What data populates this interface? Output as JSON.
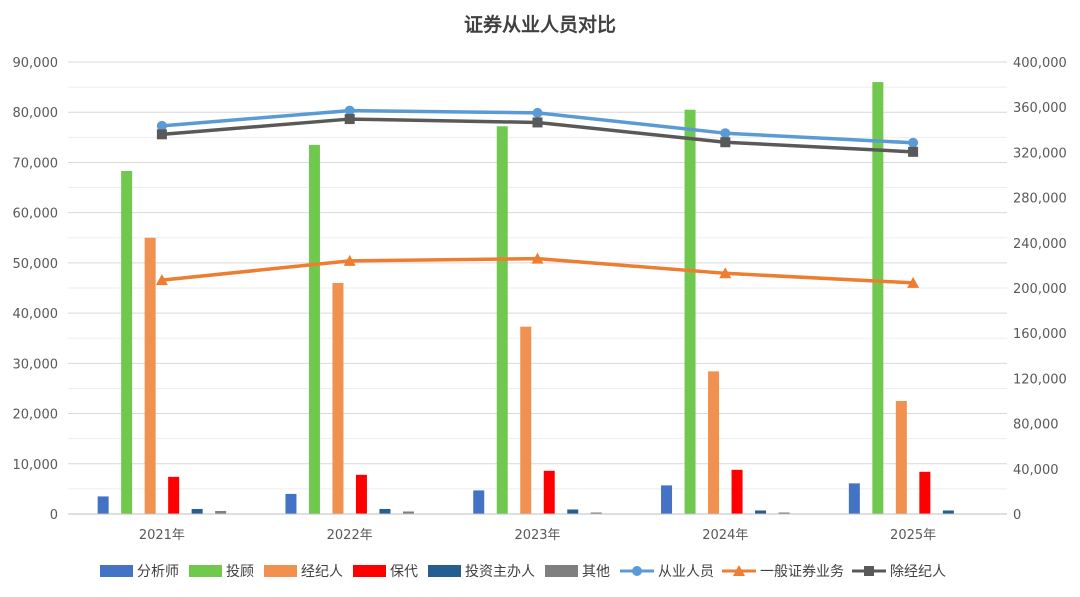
{
  "chart_data": {
    "type": "bar",
    "title": "证券从业人员对比",
    "categories": [
      "2021年",
      "2022年",
      "2023年",
      "2024年",
      "2025年"
    ],
    "y_left": {
      "min": 0,
      "max": 90000,
      "step": 10000,
      "tick_labels": [
        "0",
        "10,000",
        "20,000",
        "30,000",
        "40,000",
        "50,000",
        "60,000",
        "70,000",
        "80,000",
        "90,000"
      ]
    },
    "y_right": {
      "min": 0,
      "max": 400000,
      "step": 40000,
      "tick_labels": [
        "0",
        "40,000",
        "80,000",
        "120,000",
        "160,000",
        "200,000",
        "240,000",
        "280,000",
        "320,000",
        "360,000",
        "400,000"
      ]
    },
    "grid": true,
    "legend_position": "bottom",
    "bar_series": [
      {
        "name": "分析师",
        "color": "#4472C4",
        "values": [
          3500,
          4000,
          4700,
          5700,
          6100
        ]
      },
      {
        "name": "投顾",
        "color": "#70C94E",
        "values": [
          68300,
          73500,
          77200,
          80500,
          86000
        ]
      },
      {
        "name": "经纪人",
        "color": "#F0914F",
        "values": [
          55000,
          46000,
          37300,
          28400,
          22500
        ]
      },
      {
        "name": "保代",
        "color": "#FF0000",
        "values": [
          7400,
          7800,
          8600,
          8800,
          8400
        ]
      },
      {
        "name": "投资主办人",
        "color": "#255E91",
        "values": [
          1000,
          1000,
          900,
          700,
          700
        ]
      },
      {
        "name": "其他",
        "color": "#7F7F7F",
        "values": [
          600,
          500,
          300,
          300,
          0
        ]
      }
    ],
    "line_series": [
      {
        "name": "从业人员",
        "color": "#5B9BD5",
        "marker": "circle",
        "axis": "right",
        "values": [
          343500,
          357000,
          355000,
          337000,
          328500
        ]
      },
      {
        "name": "一般证券业务",
        "color": "#ED7D31",
        "marker": "triangle",
        "axis": "right",
        "values": [
          207000,
          224000,
          226000,
          213000,
          204500
        ]
      },
      {
        "name": "除经纪人",
        "color": "#595959",
        "marker": "square",
        "axis": "right",
        "values": [
          336000,
          349500,
          346500,
          329000,
          320500
        ]
      }
    ]
  }
}
